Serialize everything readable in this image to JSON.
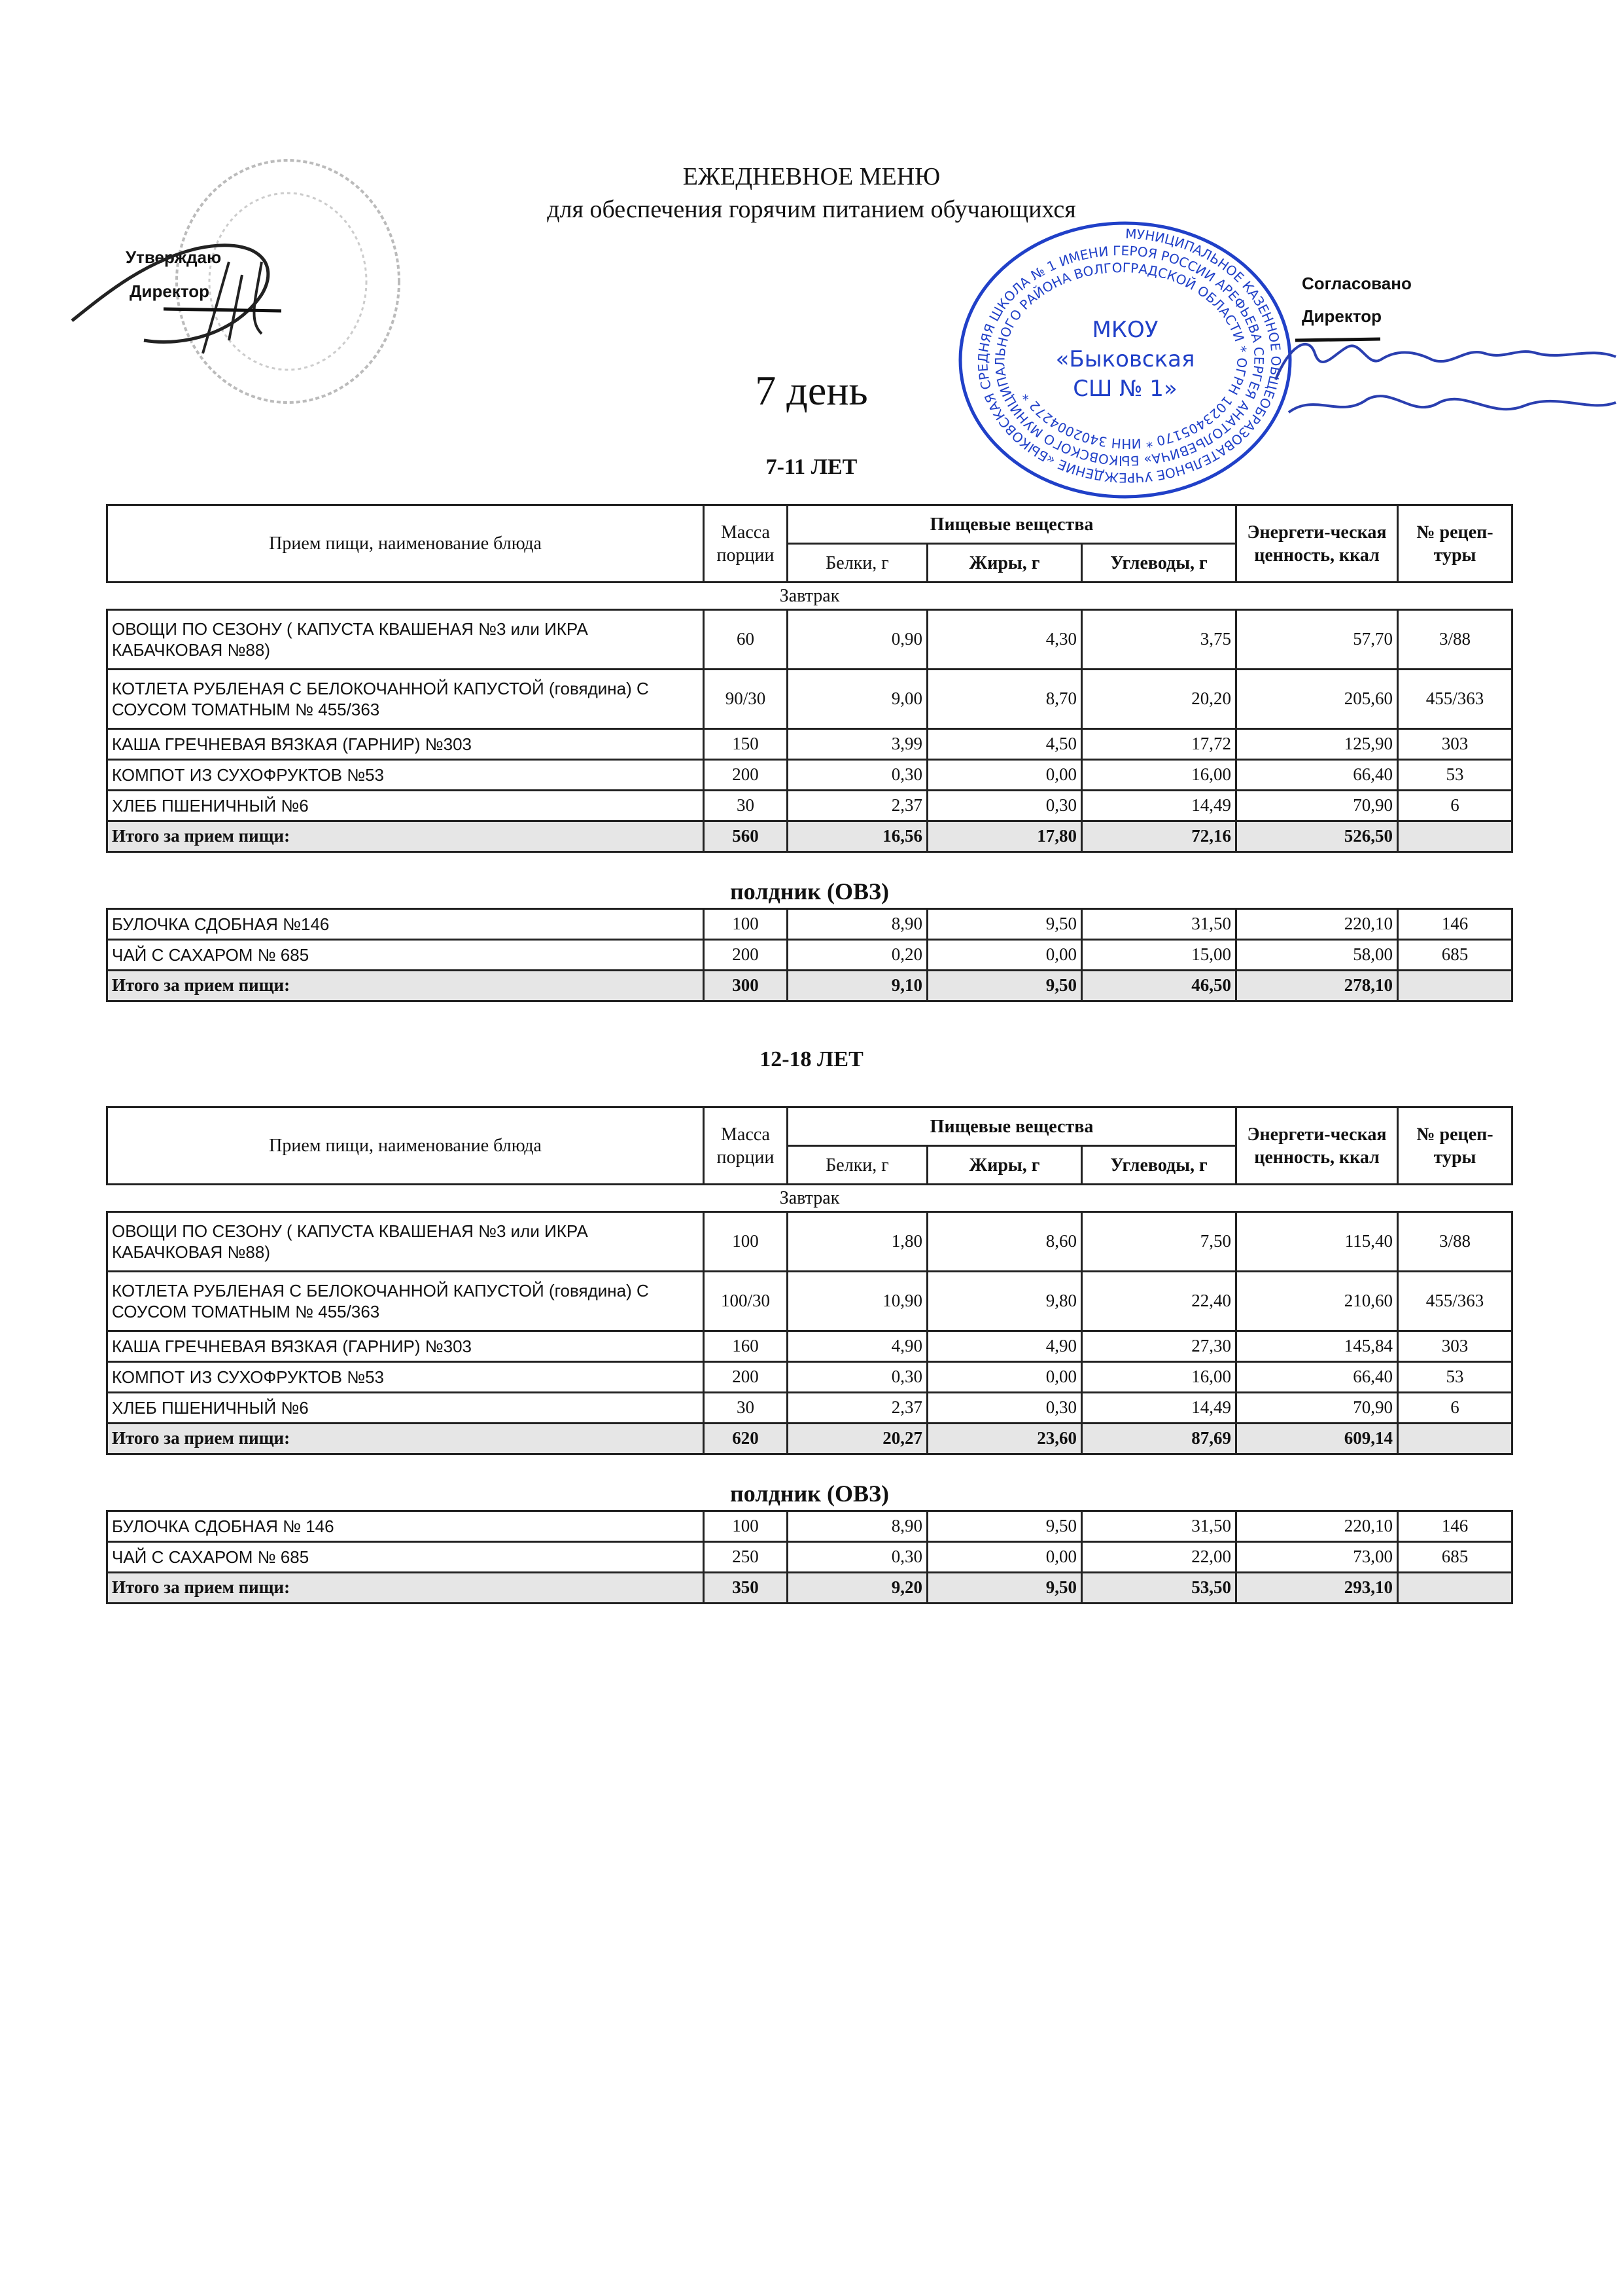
{
  "header": {
    "title": "ЕЖЕДНЕВНОЕ МЕНЮ",
    "subtitle": "для обеспечения горячим питанием обучающихся",
    "day": "7 день",
    "approve_label": "Утверждаю",
    "approve_role": "Директор",
    "agree_label": "Согласовано",
    "agree_role": "Директор"
  },
  "stamp": {
    "center_lines": [
      "МКОУ",
      "«Быковская",
      "СШ № 1»"
    ],
    "ring_text": "МУНИЦИПАЛЬНОЕ КАЗЕННОЕ ОБЩЕОБРАЗОВАТЕЛЬНОЕ УЧРЕЖДЕНИЕ «БЫКОВСКАЯ СРЕДНЯЯ ШКОЛА № 1 ИМЕНИ ГЕРОЯ РОССИИ АРЕФЬЕВА СЕРГЕЯ АНАТОЛЬЕВИЧА» БЫКОВСКОГО МУНИЦИПАЛЬНОГО РАЙОНА ВОЛГОГРАДСКОЙ ОБЛАСТИ * ОГРН 1023405170 * ИНН 3402004272 *",
    "color": "#2040c8"
  },
  "columns": {
    "name": "Прием пищи, наименование блюда",
    "mass": "Масса порции",
    "nutrients": "Пищевые вещества",
    "protein": "Белки, г",
    "fat": "Жиры, г",
    "carbs": "Углеводы, г",
    "energy": "Энергети-ческая ценность, ккал",
    "recipe": "№ рецеп-туры"
  },
  "tables": [
    {
      "age": "7-11 ЛЕТ",
      "sections": [
        {
          "title": "Завтрак",
          "rows": [
            {
              "name": "ОВОЩИ ПО СЕЗОНУ ( КАПУСТА КВАШЕНАЯ №3 или ИКРА КАБАЧКОВАЯ №88)",
              "mass": "60",
              "protein": "0,90",
              "fat": "4,30",
              "carbs": "3,75",
              "energy": "57,70",
              "recipe": "3/88"
            },
            {
              "name": "КОТЛЕТА РУБЛЕНАЯ С БЕЛОКОЧАННОЙ КАПУСТОЙ (говядина) С СОУСОМ ТОМАТНЫМ № 455/363",
              "mass": "90/30",
              "protein": "9,00",
              "fat": "8,70",
              "carbs": "20,20",
              "energy": "205,60",
              "recipe": "455/363"
            },
            {
              "name": "КАША ГРЕЧНЕВАЯ ВЯЗКАЯ (ГАРНИР) №303",
              "mass": "150",
              "protein": "3,99",
              "fat": "4,50",
              "carbs": "17,72",
              "energy": "125,90",
              "recipe": "303"
            },
            {
              "name": "КОМПОТ ИЗ СУХОФРУКТОВ №53",
              "mass": "200",
              "protein": "0,30",
              "fat": "0,00",
              "carbs": "16,00",
              "energy": "66,40",
              "recipe": "53"
            },
            {
              "name": "ХЛЕБ ПШЕНИЧНЫЙ №6",
              "mass": "30",
              "protein": "2,37",
              "fat": "0,30",
              "carbs": "14,49",
              "energy": "70,90",
              "recipe": "6"
            }
          ],
          "total": {
            "name": "Итого за прием пищи:",
            "mass": "560",
            "protein": "16,56",
            "fat": "17,80",
            "carbs": "72,16",
            "energy": "526,50",
            "recipe": ""
          }
        },
        {
          "title": "полдник (ОВЗ)",
          "rows": [
            {
              "name": "БУЛОЧКА СДОБНАЯ  №146",
              "mass": "100",
              "protein": "8,90",
              "fat": "9,50",
              "carbs": "31,50",
              "energy": "220,10",
              "recipe": "146"
            },
            {
              "name": "ЧАЙ С САХАРОМ  № 685",
              "mass": "200",
              "protein": "0,20",
              "fat": "0,00",
              "carbs": "15,00",
              "energy": "58,00",
              "recipe": "685"
            }
          ],
          "total": {
            "name": "Итого за прием пищи:",
            "mass": "300",
            "protein": "9,10",
            "fat": "9,50",
            "carbs": "46,50",
            "energy": "278,10",
            "recipe": ""
          }
        }
      ]
    },
    {
      "age": "12-18 ЛЕТ",
      "sections": [
        {
          "title": "Завтрак",
          "rows": [
            {
              "name": "ОВОЩИ ПО СЕЗОНУ ( КАПУСТА КВАШЕНАЯ №3 или ИКРА КАБАЧКОВАЯ №88)",
              "mass": "100",
              "protein": "1,80",
              "fat": "8,60",
              "carbs": "7,50",
              "energy": "115,40",
              "recipe": "3/88"
            },
            {
              "name": "КОТЛЕТА РУБЛЕНАЯ С БЕЛОКОЧАННОЙ КАПУСТОЙ (говядина) С СОУСОМ ТОМАТНЫМ № 455/363",
              "mass": "100/30",
              "protein": "10,90",
              "fat": "9,80",
              "carbs": "22,40",
              "energy": "210,60",
              "recipe": "455/363"
            },
            {
              "name": "КАША ГРЕЧНЕВАЯ ВЯЗКАЯ (ГАРНИР) №303",
              "mass": "160",
              "protein": "4,90",
              "fat": "4,90",
              "carbs": "27,30",
              "energy": "145,84",
              "recipe": "303"
            },
            {
              "name": "КОМПОТ ИЗ СУХОФРУКТОВ №53",
              "mass": "200",
              "protein": "0,30",
              "fat": "0,00",
              "carbs": "16,00",
              "energy": "66,40",
              "recipe": "53"
            },
            {
              "name": "ХЛЕБ ПШЕНИЧНЫЙ №6",
              "mass": "30",
              "protein": "2,37",
              "fat": "0,30",
              "carbs": "14,49",
              "energy": "70,90",
              "recipe": "6"
            }
          ],
          "total": {
            "name": "Итого за прием пищи:",
            "mass": "620",
            "protein": "20,27",
            "fat": "23,60",
            "carbs": "87,69",
            "energy": "609,14",
            "recipe": ""
          }
        },
        {
          "title": "полдник (ОВЗ)",
          "rows": [
            {
              "name": "БУЛОЧКА СДОБНАЯ № 146",
              "mass": "100",
              "protein": "8,90",
              "fat": "9,50",
              "carbs": "31,50",
              "energy": "220,10",
              "recipe": "146"
            },
            {
              "name": "ЧАЙ С САХАРОМ  № 685",
              "mass": "250",
              "protein": "0,30",
              "fat": "0,00",
              "carbs": "22,00",
              "energy": "73,00",
              "recipe": "685"
            }
          ],
          "total": {
            "name": "Итого за прием пищи:",
            "mass": "350",
            "protein": "9,20",
            "fat": "9,50",
            "carbs": "53,50",
            "energy": "293,10",
            "recipe": ""
          }
        }
      ]
    }
  ]
}
